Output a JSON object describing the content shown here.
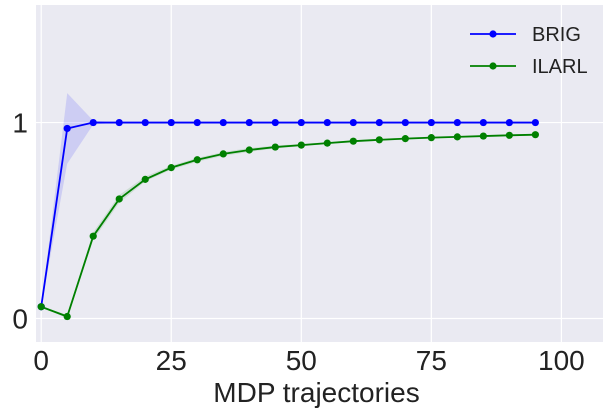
{
  "chart_data": {
    "type": "line",
    "title": "",
    "xlabel": "MDP trajectories",
    "ylabel": "",
    "xlim": [
      -1,
      108
    ],
    "ylim": [
      -0.12,
      1.6
    ],
    "grid": true,
    "legend_position": "top-right",
    "x_ticks": [
      0,
      25,
      50,
      75,
      100
    ],
    "y_ticks": [
      0,
      1
    ],
    "x_tick_labels": [
      "0",
      "25",
      "50",
      "75",
      "100"
    ],
    "y_tick_labels": [
      "0",
      "1"
    ],
    "x": [
      0,
      5,
      10,
      15,
      20,
      25,
      30,
      35,
      40,
      45,
      50,
      55,
      60,
      65,
      70,
      75,
      80,
      85,
      90,
      95
    ],
    "series": [
      {
        "name": "BRIG",
        "color": "#0000ff",
        "values": [
          0.06,
          0.97,
          1.0,
          1.0,
          1.0,
          1.0,
          1.0,
          1.0,
          1.0,
          1.0,
          1.0,
          1.0,
          1.0,
          1.0,
          1.0,
          1.0,
          1.0,
          1.0,
          1.0,
          1.0
        ],
        "band_lower": [
          0.06,
          0.79,
          0.99,
          1.0,
          1.0,
          1.0,
          1.0,
          1.0,
          1.0,
          1.0,
          1.0,
          1.0,
          1.0,
          1.0,
          1.0,
          1.0,
          1.0,
          1.0,
          1.0,
          1.0
        ],
        "band_upper": [
          0.06,
          1.15,
          1.01,
          1.0,
          1.0,
          1.0,
          1.0,
          1.0,
          1.0,
          1.0,
          1.0,
          1.0,
          1.0,
          1.0,
          1.0,
          1.0,
          1.0,
          1.0,
          1.0,
          1.0
        ]
      },
      {
        "name": "ILARL",
        "color": "#008000",
        "values": [
          0.06,
          0.01,
          0.42,
          0.61,
          0.71,
          0.77,
          0.81,
          0.84,
          0.86,
          0.875,
          0.885,
          0.895,
          0.905,
          0.912,
          0.918,
          0.923,
          0.927,
          0.931,
          0.935,
          0.938
        ],
        "band_lower": [
          0.06,
          0.0,
          0.4,
          0.59,
          0.7,
          0.76,
          0.8,
          0.83,
          0.85,
          0.868,
          0.879,
          0.89,
          0.9,
          0.907,
          0.913,
          0.918,
          0.923,
          0.927,
          0.931,
          0.934
        ],
        "band_upper": [
          0.06,
          0.02,
          0.44,
          0.63,
          0.725,
          0.78,
          0.82,
          0.85,
          0.87,
          0.882,
          0.891,
          0.9,
          0.91,
          0.917,
          0.923,
          0.928,
          0.931,
          0.935,
          0.939,
          0.942
        ]
      }
    ]
  }
}
